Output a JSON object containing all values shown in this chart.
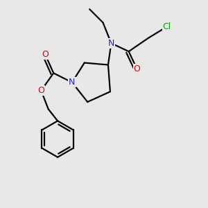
{
  "bg": "#E8E8E8",
  "bond_color": "#000000",
  "cl_color": "#00AA00",
  "n_color": "#2222DD",
  "o_color": "#DD0000",
  "bond_lw": 1.6,
  "font_size": 8.5,
  "fig_w": 3.0,
  "fig_h": 3.0,
  "dpi": 100,
  "xlim": [
    0,
    10
  ],
  "ylim": [
    0,
    10
  ]
}
